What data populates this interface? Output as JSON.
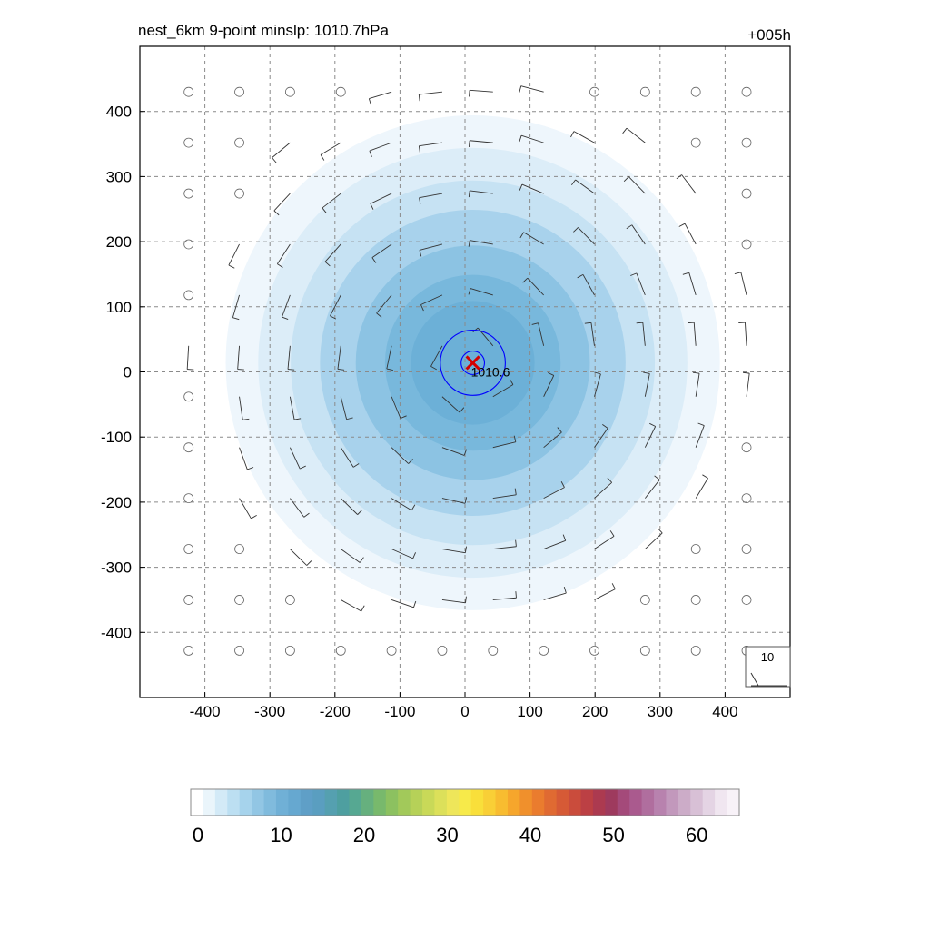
{
  "chart_data": {
    "type": "contour-map",
    "title": "nest_6km  9-point minslp: 1010.7hPa",
    "forecast_hour": "+005h",
    "xlim": [
      -500,
      500
    ],
    "ylim": [
      -500,
      500
    ],
    "x_ticks": [
      -400,
      -300,
      -200,
      -100,
      0,
      100,
      200,
      300,
      400
    ],
    "y_ticks": [
      400,
      300,
      200,
      100,
      0,
      -100,
      -200,
      -300,
      -400
    ],
    "grid": true,
    "center": {
      "x": 12,
      "y": 14
    },
    "center_label": "1010.6",
    "center_marker_color": "#d40000",
    "isobar_color": "#0000ff",
    "isobar_radii_km": [
      18,
      50
    ],
    "wind_speed_rings": [
      {
        "radius_km": 380,
        "color": "#eef6fc"
      },
      {
        "radius_km": 330,
        "color": "#dcedf8"
      },
      {
        "radius_km": 280,
        "color": "#c6e2f3"
      },
      {
        "radius_km": 235,
        "color": "#a8d2ec"
      },
      {
        "radius_km": 180,
        "color": "#8cc3e3"
      },
      {
        "radius_km": 135,
        "color": "#78b8dc"
      },
      {
        "radius_km": 95,
        "color": "#6cb0d7"
      }
    ],
    "reference_vector": "10",
    "colorbar": {
      "min": 0,
      "max": 66,
      "tick_labels": [
        "0",
        "10",
        "20",
        "30",
        "40",
        "50",
        "60"
      ],
      "tick_values": [
        0,
        10,
        20,
        30,
        40,
        50,
        60
      ],
      "colors": [
        "#ffffff",
        "#eaf5fb",
        "#d3eaf7",
        "#bcdff2",
        "#a6d3ec",
        "#92c6e4",
        "#80bbdd",
        "#70b0d6",
        "#66a8d0",
        "#5f9fc7",
        "#5a9ec0",
        "#55a0b0",
        "#4e9fa0",
        "#56a892",
        "#66b07e",
        "#78b96c",
        "#8cc160",
        "#a2c95a",
        "#b6d158",
        "#c9d958",
        "#dce05a",
        "#eee65a",
        "#f7ea4a",
        "#f9df3a",
        "#f9cf36",
        "#f8bc30",
        "#f6a62c",
        "#f0902c",
        "#ea7c2e",
        "#e06a32",
        "#d65a36",
        "#ca4c3c",
        "#bc4044",
        "#ac3a50",
        "#9e3a5e",
        "#a44a7a",
        "#aa5a8e",
        "#b06e9e",
        "#b882ae",
        "#c298bc",
        "#ccacc8",
        "#d8c0d6",
        "#e4d4e4",
        "#f0e6f0",
        "#f8f2f8"
      ]
    }
  }
}
